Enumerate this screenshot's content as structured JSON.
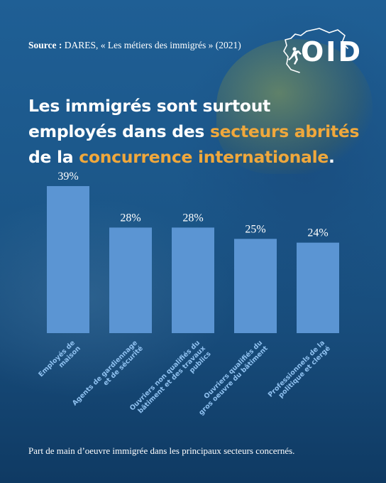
{
  "source": {
    "label": "Source :",
    "text": "DARES, «  Les métiers des immigrés » (2021)"
  },
  "logo": {
    "text": "OID"
  },
  "title": {
    "part1": "Les immigrés sont surtout",
    "part2": "employés dans des ",
    "highlight1": "secteurs abrités",
    "part3": "de la ",
    "highlight2": "concurrence internationale",
    "end": "."
  },
  "caption": "Part de main d’oeuvre immigrée dans les principaux secteurs concernés.",
  "colors": {
    "bar": "#5b95d3",
    "highlight": "#f0a83c",
    "text": "#ffffff",
    "label": "#8fc1f0"
  },
  "chart_data": {
    "type": "bar",
    "categories": [
      "Employés de maison",
      "Agents de gardiennage et de sécurité",
      "Ouvriers non qualifiés du bâtiment et des travaux publics",
      "Ouvriers qualifiés du gros oeuvre du bâtiment",
      "Professionnels de la politique et clergé"
    ],
    "category_lines": [
      [
        "Employés de",
        "maison"
      ],
      [
        "Agents de gardiennage",
        "et de sécurité"
      ],
      [
        "Ouvriers non qualifiés du",
        "bâtiment et des travaux",
        "publics"
      ],
      [
        "Ouvriers qualifiés du",
        "gros oeuvre du bâtiment"
      ],
      [
        "Professionnels de la",
        "politique et clergé"
      ]
    ],
    "values": [
      39,
      28,
      28,
      25,
      24
    ],
    "value_labels": [
      "39%",
      "28%",
      "28%",
      "25%",
      "24%"
    ],
    "ylim": [
      0,
      39
    ],
    "grid": false,
    "legend": "none"
  }
}
